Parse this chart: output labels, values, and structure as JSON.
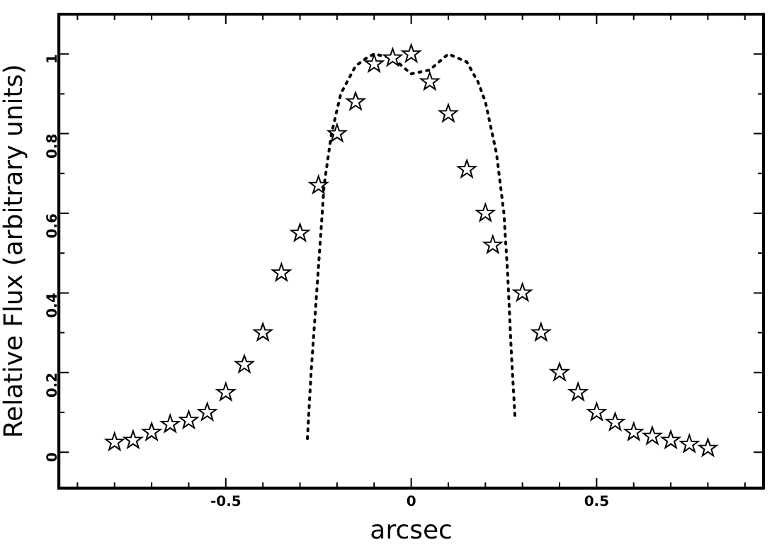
{
  "chart_data": {
    "type": "scatter",
    "xlabel": "arcsec",
    "ylabel": "Relative Flux (arbitrary units)",
    "xlim": [
      -0.95,
      0.95
    ],
    "ylim": [
      -0.09,
      1.1
    ],
    "xticks": [
      {
        "value": -0.9,
        "label": null
      },
      {
        "value": -0.8,
        "label": null
      },
      {
        "value": -0.7,
        "label": null
      },
      {
        "value": -0.6,
        "label": null
      },
      -0.5,
      {
        "value": -0.4,
        "label": null
      },
      {
        "value": -0.3,
        "label": null
      },
      {
        "value": -0.2,
        "label": null
      },
      {
        "value": -0.1,
        "label": null
      },
      0,
      {
        "value": 0.1,
        "label": null
      },
      {
        "value": 0.2,
        "label": null
      },
      {
        "value": 0.3,
        "label": null
      },
      {
        "value": 0.4,
        "label": null
      },
      0.5,
      {
        "value": 0.6,
        "label": null
      },
      {
        "value": 0.7,
        "label": null
      },
      {
        "value": 0.8,
        "label": null
      },
      {
        "value": 0.9,
        "label": null
      }
    ],
    "yticks": [
      0,
      {
        "value": 0.1,
        "label": null
      },
      0.2,
      {
        "value": 0.3,
        "label": null
      },
      0.4,
      {
        "value": 0.5,
        "label": null
      },
      0.6,
      {
        "value": 0.7,
        "label": null
      },
      0.8,
      {
        "value": 0.9,
        "label": null
      },
      1
    ],
    "grid": false,
    "legend": false,
    "series": [
      {
        "type": "scatter",
        "marker": "star",
        "color": "#000000",
        "x": [
          -0.8,
          -0.75,
          -0.7,
          -0.65,
          -0.6,
          -0.55,
          -0.5,
          -0.45,
          -0.4,
          -0.35,
          -0.3,
          -0.25,
          -0.2,
          -0.15,
          -0.1,
          -0.05,
          0,
          0.05,
          0.1,
          0.15,
          0.2,
          0.22,
          0.3,
          0.35,
          0.4,
          0.45,
          0.5,
          0.55,
          0.6,
          0.65,
          0.7,
          0.75,
          0.8
        ],
        "values": [
          0.025,
          0.03,
          0.05,
          0.07,
          0.08,
          0.1,
          0.15,
          0.22,
          0.3,
          0.45,
          0.55,
          0.67,
          0.8,
          0.88,
          0.975,
          0.99,
          1.0,
          0.93,
          0.85,
          0.71,
          0.6,
          0.52,
          0.4,
          0.3,
          0.2,
          0.15,
          0.1,
          0.075,
          0.05,
          0.04,
          0.03,
          0.02,
          0.01
        ]
      },
      {
        "type": "line",
        "marker": "none",
        "line_style": "dotted",
        "color": "#000000",
        "x": [
          -0.28,
          -0.27,
          -0.255,
          -0.24,
          -0.235,
          -0.215,
          -0.19,
          -0.15,
          -0.12,
          -0.1,
          -0.05,
          0,
          0.05,
          0.1,
          0.15,
          0.18,
          0.2,
          0.23,
          0.25,
          0.26,
          0.27,
          0.28
        ],
        "values": [
          0.034,
          0.2,
          0.4,
          0.6,
          0.67,
          0.8,
          0.9,
          0.97,
          0.99,
          1.0,
          0.99,
          0.95,
          0.96,
          1.0,
          0.98,
          0.93,
          0.88,
          0.75,
          0.6,
          0.45,
          0.25,
          0.086
        ]
      }
    ]
  }
}
